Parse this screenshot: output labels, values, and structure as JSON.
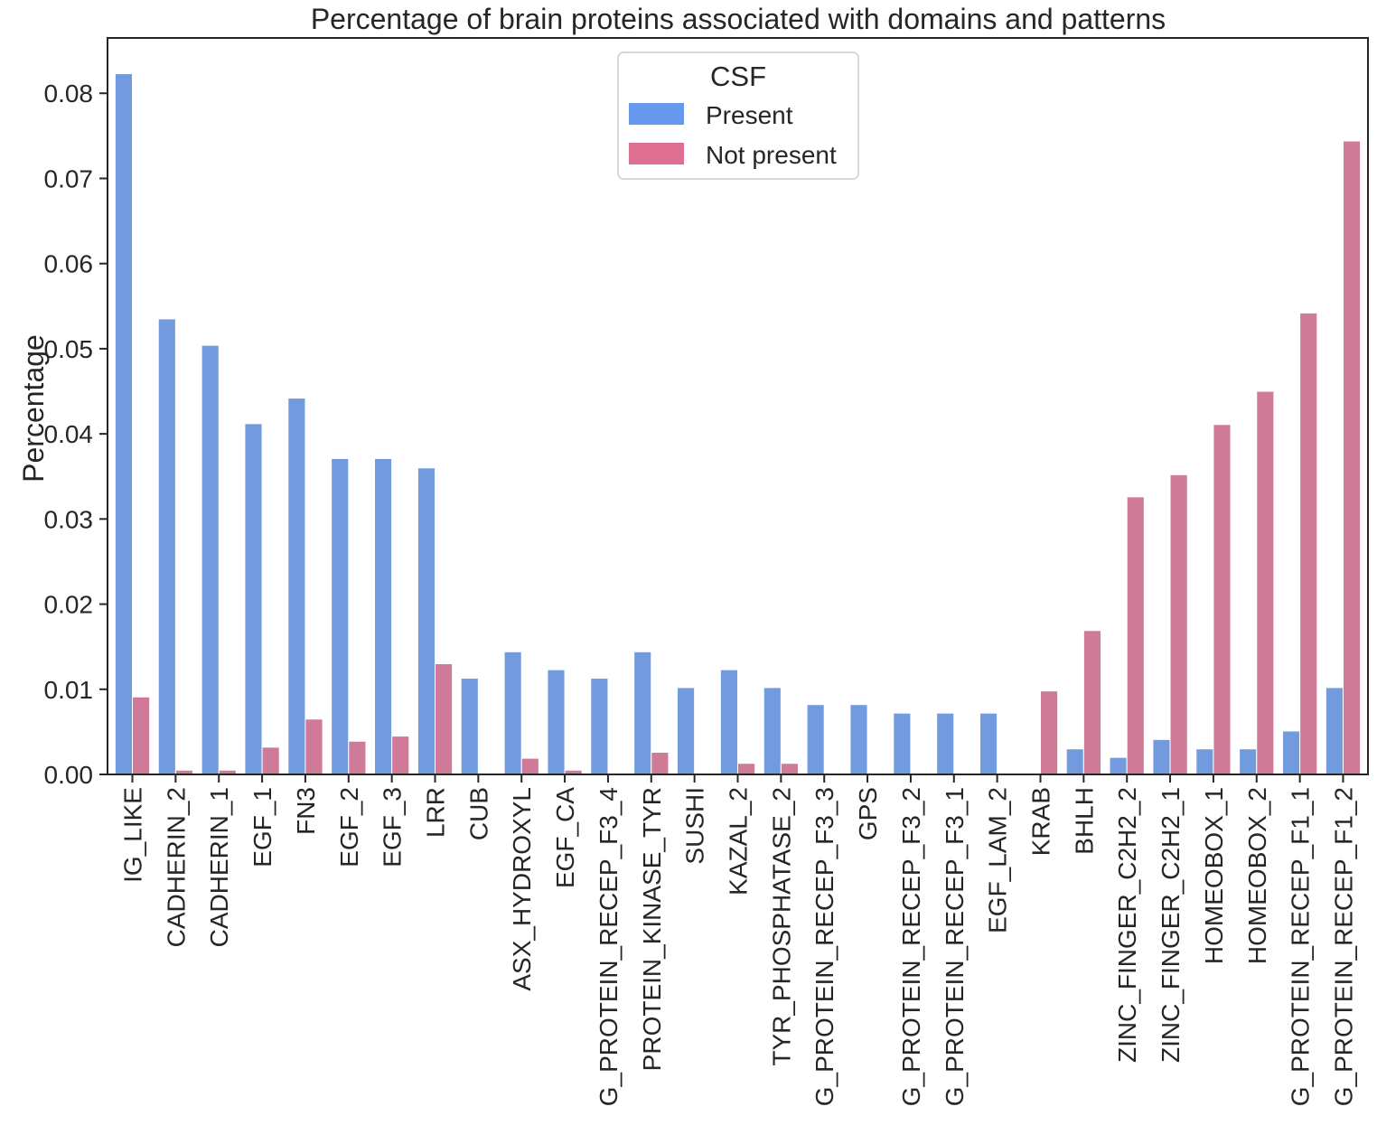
{
  "chart_data": {
    "type": "bar",
    "title": "Percentage of brain proteins associated with domains and patterns",
    "xlabel": "",
    "ylabel": "Percentage",
    "ylim": [
      0,
      0.0865
    ],
    "yticks": [
      "0.00",
      "0.01",
      "0.02",
      "0.03",
      "0.04",
      "0.05",
      "0.06",
      "0.07",
      "0.08"
    ],
    "grid": false,
    "legend": {
      "title": "CSF",
      "placement": "top-center",
      "entries": [
        "Present",
        "Not present"
      ]
    },
    "categories": [
      "IG_LIKE",
      "CADHERIN_2",
      "CADHERIN_1",
      "EGF_1",
      "FN3",
      "EGF_2",
      "EGF_3",
      "LRR",
      "CUB",
      "ASX_HYDROXYL",
      "EGF_CA",
      "G_PROTEIN_RECEP_F3_4",
      "PROTEIN_KINASE_TYR",
      "SUSHI",
      "KAZAL_2",
      "TYR_PHOSPHATASE_2",
      "G_PROTEIN_RECEP_F3_3",
      "GPS",
      "G_PROTEIN_RECEP_F3_2",
      "G_PROTEIN_RECEP_F3_1",
      "EGF_LAM_2",
      "KRAB",
      "BHLH",
      "ZINC_FINGER_C2H2_2",
      "ZINC_FINGER_C2H2_1",
      "HOMEOBOX_1",
      "HOMEOBOX_2",
      "G_PROTEIN_RECEP_F1_1",
      "G_PROTEIN_RECEP_F1_2"
    ],
    "series": [
      {
        "name": "Present",
        "color": "#729bdf",
        "values": [
          0.0823,
          0.0535,
          0.0504,
          0.0412,
          0.0442,
          0.0371,
          0.0371,
          0.036,
          0.0113,
          0.0144,
          0.0123,
          0.0113,
          0.0144,
          0.0102,
          0.0123,
          0.0102,
          0.0082,
          0.0082,
          0.0072,
          0.0072,
          0.0072,
          0.0,
          0.003,
          0.002,
          0.0041,
          0.003,
          0.003,
          0.0051,
          0.0102
        ]
      },
      {
        "name": "Not present",
        "color": "#cf7a96",
        "values": [
          0.0091,
          0.0005,
          0.0005,
          0.0032,
          0.0065,
          0.0039,
          0.0045,
          0.013,
          0.0,
          0.0019,
          0.0005,
          0.0,
          0.0026,
          0.0,
          0.0013,
          0.0013,
          0.0,
          0.0,
          0.0,
          0.0,
          0.0,
          0.0098,
          0.0169,
          0.0326,
          0.0352,
          0.0411,
          0.045,
          0.0542,
          0.0744
        ]
      }
    ],
    "legend_swatch_colors": [
      "#6699ee",
      "#de6f91"
    ]
  }
}
